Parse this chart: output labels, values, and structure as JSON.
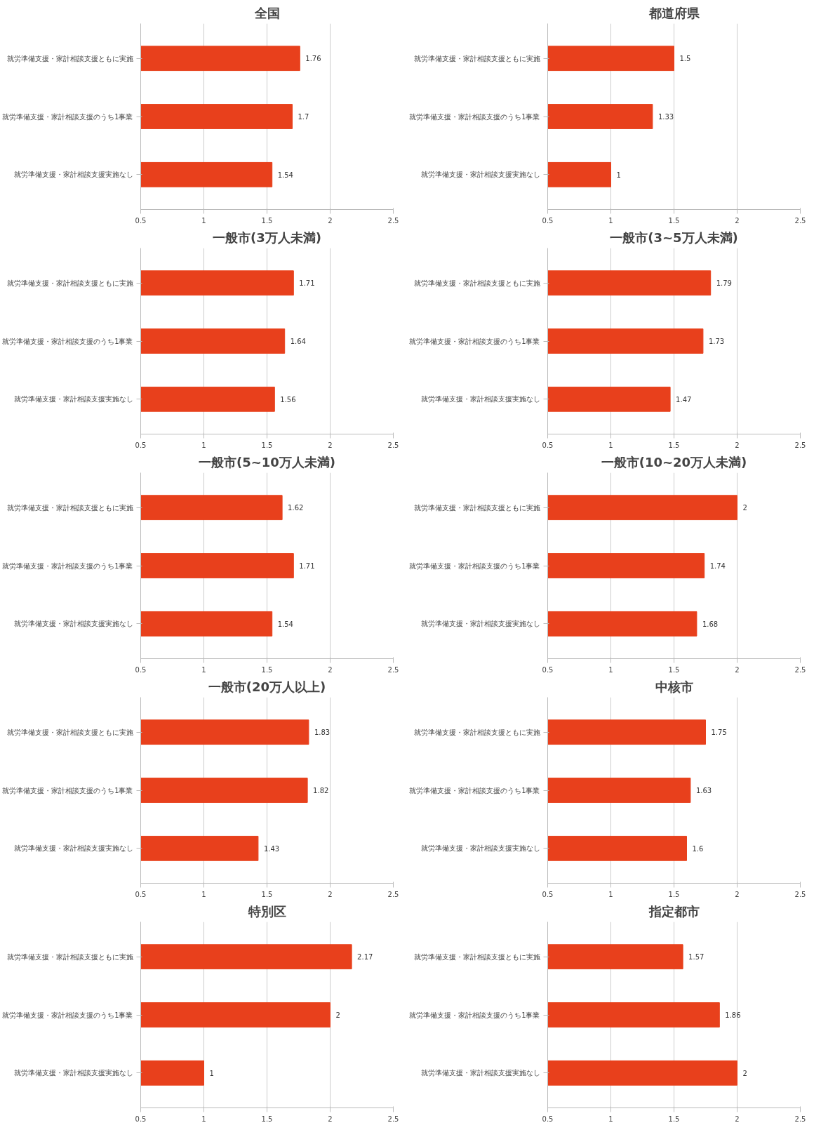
{
  "chart_data": [
    {
      "type": "bar",
      "orientation": "horizontal",
      "title": "全国",
      "categories": [
        "就労準備支援・家計相談支援ともに実施",
        "就労準備支援・家計相談支援のうち1事業",
        "就労準備支援・家計相談支援実施なし"
      ],
      "values": [
        1.76,
        1.7,
        1.54
      ],
      "color": "#e8401c",
      "xlim": [
        0.5,
        2.5
      ],
      "xticks": [
        0.5,
        1,
        1.5,
        2,
        2.5
      ],
      "grid": "x",
      "data_labels": true
    },
    {
      "type": "bar",
      "orientation": "horizontal",
      "title": "都道府県",
      "categories": [
        "就労準備支援・家計相談支援ともに実施",
        "就労準備支援・家計相談支援のうち1事業",
        "就労準備支援・家計相談支援実施なし"
      ],
      "values": [
        1.5,
        1.33,
        1
      ],
      "color": "#e8401c",
      "xlim": [
        0.5,
        2.5
      ],
      "xticks": [
        0.5,
        1,
        1.5,
        2,
        2.5
      ],
      "grid": "x",
      "data_labels": true
    },
    {
      "type": "bar",
      "orientation": "horizontal",
      "title": "一般市(3万人未満)",
      "categories": [
        "就労準備支援・家計相談支援ともに実施",
        "就労準備支援・家計相談支援のうち1事業",
        "就労準備支援・家計相談支援実施なし"
      ],
      "values": [
        1.71,
        1.64,
        1.56
      ],
      "color": "#e8401c",
      "xlim": [
        0.5,
        2.5
      ],
      "xticks": [
        0.5,
        1,
        1.5,
        2,
        2.5
      ],
      "grid": "x",
      "data_labels": true
    },
    {
      "type": "bar",
      "orientation": "horizontal",
      "title": "一般市(3~5万人未満)",
      "categories": [
        "就労準備支援・家計相談支援ともに実施",
        "就労準備支援・家計相談支援のうち1事業",
        "就労準備支援・家計相談支援実施なし"
      ],
      "values": [
        1.79,
        1.73,
        1.47
      ],
      "color": "#e8401c",
      "xlim": [
        0.5,
        2.5
      ],
      "xticks": [
        0.5,
        1,
        1.5,
        2,
        2.5
      ],
      "grid": "x",
      "data_labels": true
    },
    {
      "type": "bar",
      "orientation": "horizontal",
      "title": "一般市(5~10万人未満)",
      "categories": [
        "就労準備支援・家計相談支援ともに実施",
        "就労準備支援・家計相談支援のうち1事業",
        "就労準備支援・家計相談支援実施なし"
      ],
      "values": [
        1.62,
        1.71,
        1.54
      ],
      "color": "#e8401c",
      "xlim": [
        0.5,
        2.5
      ],
      "xticks": [
        0.5,
        1,
        1.5,
        2,
        2.5
      ],
      "grid": "x",
      "data_labels": true
    },
    {
      "type": "bar",
      "orientation": "horizontal",
      "title": "一般市(10~20万人未満)",
      "categories": [
        "就労準備支援・家計相談支援ともに実施",
        "就労準備支援・家計相談支援のうち1事業",
        "就労準備支援・家計相談支援実施なし"
      ],
      "values": [
        2,
        1.74,
        1.68
      ],
      "color": "#e8401c",
      "xlim": [
        0.5,
        2.5
      ],
      "xticks": [
        0.5,
        1,
        1.5,
        2,
        2.5
      ],
      "grid": "x",
      "data_labels": true
    },
    {
      "type": "bar",
      "orientation": "horizontal",
      "title": "一般市(20万人以上)",
      "categories": [
        "就労準備支援・家計相談支援ともに実施",
        "就労準備支援・家計相談支援のうち1事業",
        "就労準備支援・家計相談支援実施なし"
      ],
      "values": [
        1.83,
        1.82,
        1.43
      ],
      "color": "#e8401c",
      "xlim": [
        0.5,
        2.5
      ],
      "xticks": [
        0.5,
        1,
        1.5,
        2,
        2.5
      ],
      "grid": "x",
      "data_labels": true
    },
    {
      "type": "bar",
      "orientation": "horizontal",
      "title": "中核市",
      "categories": [
        "就労準備支援・家計相談支援ともに実施",
        "就労準備支援・家計相談支援のうち1事業",
        "就労準備支援・家計相談支援実施なし"
      ],
      "values": [
        1.75,
        1.63,
        1.6
      ],
      "color": "#e8401c",
      "xlim": [
        0.5,
        2.5
      ],
      "xticks": [
        0.5,
        1,
        1.5,
        2,
        2.5
      ],
      "grid": "x",
      "data_labels": true
    },
    {
      "type": "bar",
      "orientation": "horizontal",
      "title": "特別区",
      "categories": [
        "就労準備支援・家計相談支援ともに実施",
        "就労準備支援・家計相談支援のうち1事業",
        "就労準備支援・家計相談支援実施なし"
      ],
      "values": [
        2.17,
        2,
        1
      ],
      "color": "#e8401c",
      "xlim": [
        0.5,
        2.5
      ],
      "xticks": [
        0.5,
        1,
        1.5,
        2,
        2.5
      ],
      "grid": "x",
      "data_labels": true
    },
    {
      "type": "bar",
      "orientation": "horizontal",
      "title": "指定都市",
      "categories": [
        "就労準備支援・家計相談支援ともに実施",
        "就労準備支援・家計相談支援のうち1事業",
        "就労準備支援・家計相談支援実施なし"
      ],
      "values": [
        1.57,
        1.86,
        2
      ],
      "color": "#e8401c",
      "xlim": [
        0.5,
        2.5
      ],
      "xticks": [
        0.5,
        1,
        1.5,
        2,
        2.5
      ],
      "grid": "x",
      "data_labels": true
    }
  ]
}
